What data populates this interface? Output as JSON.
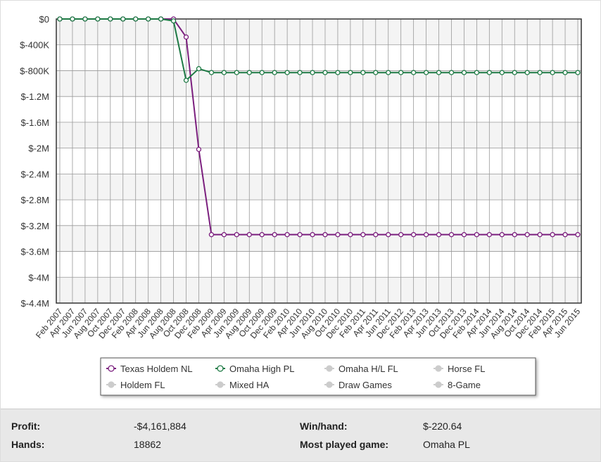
{
  "chart_data": {
    "type": "line",
    "categories": [
      "Feb 2007",
      "Apr 2007",
      "Jun 2007",
      "Aug 2007",
      "Oct 2007",
      "Dec 2007",
      "Feb 2008",
      "Apr 2008",
      "Jun 2008",
      "Aug 2008",
      "Oct 2008",
      "Dec 2008",
      "Feb 2009",
      "Apr 2009",
      "Jun 2009",
      "Aug 2009",
      "Oct 2009",
      "Dec 2009",
      "Feb 2010",
      "Apr 2010",
      "Jun 2010",
      "Aug 2010",
      "Oct 2010",
      "Dec 2010",
      "Feb 2011",
      "Apr 2011",
      "Jun 2011",
      "Dec 2012",
      "Feb 2013",
      "Apr 2013",
      "Jun 2013",
      "Oct 2013",
      "Dec 2013",
      "Feb 2014",
      "Apr 2014",
      "Jun 2014",
      "Aug 2014",
      "Oct 2014",
      "Dec 2014",
      "Feb 2015",
      "Apr 2015",
      "Jun 2015"
    ],
    "series": [
      {
        "name": "Texas Holdem NL",
        "color": "#7b1f7e",
        "values": [
          0,
          0,
          0,
          0,
          0,
          0,
          0,
          0,
          0,
          0,
          -280000,
          -2020000,
          -3340000,
          -3340000,
          -3340000,
          -3340000,
          -3340000,
          -3340000,
          -3340000,
          -3340000,
          -3340000,
          -3340000,
          -3340000,
          -3340000,
          -3340000,
          -3340000,
          -3340000,
          -3340000,
          -3340000,
          -3340000,
          -3340000,
          -3340000,
          -3340000,
          -3340000,
          -3340000,
          -3340000,
          -3340000,
          -3340000,
          -3340000,
          -3340000,
          -3340000,
          -3340000
        ]
      },
      {
        "name": "Omaha High PL",
        "color": "#1e7a45",
        "values": [
          0,
          0,
          0,
          0,
          0,
          0,
          0,
          0,
          0,
          -30000,
          -950000,
          -770000,
          -830000,
          -830000,
          -830000,
          -830000,
          -830000,
          -830000,
          -830000,
          -830000,
          -830000,
          -830000,
          -830000,
          -830000,
          -830000,
          -830000,
          -830000,
          -830000,
          -830000,
          -830000,
          -830000,
          -830000,
          -830000,
          -830000,
          -830000,
          -830000,
          -830000,
          -830000,
          -830000,
          -830000,
          -830000,
          -830000
        ]
      }
    ],
    "hidden_series": [
      "Omaha H/L FL",
      "Horse FL",
      "Holdem FL",
      "Mixed HA",
      "Draw Games",
      "8-Game"
    ],
    "ylim": [
      -4400000,
      0
    ],
    "yticks": [
      {
        "value": 0,
        "label": "$0"
      },
      {
        "value": -400000,
        "label": "$-400K"
      },
      {
        "value": -800000,
        "label": "$-800K"
      },
      {
        "value": -1200000,
        "label": "$-1.2M"
      },
      {
        "value": -1600000,
        "label": "$-1.6M"
      },
      {
        "value": -2000000,
        "label": "$-2M"
      },
      {
        "value": -2400000,
        "label": "$-2.4M"
      },
      {
        "value": -2800000,
        "label": "$-2.8M"
      },
      {
        "value": -3200000,
        "label": "$-3.2M"
      },
      {
        "value": -3600000,
        "label": "$-3.6M"
      },
      {
        "value": -4000000,
        "label": "$-4M"
      },
      {
        "value": -4400000,
        "label": "$-4.4M"
      }
    ],
    "grid": true
  },
  "stats": [
    [
      {
        "label": "Profit:",
        "value": "-$4,161,884"
      },
      {
        "label": "Win/hand:",
        "value": "$-220.64"
      }
    ],
    [
      {
        "label": "Hands:",
        "value": 18862
      },
      {
        "label": "Most played game:",
        "value": "Omaha PL"
      }
    ]
  ]
}
